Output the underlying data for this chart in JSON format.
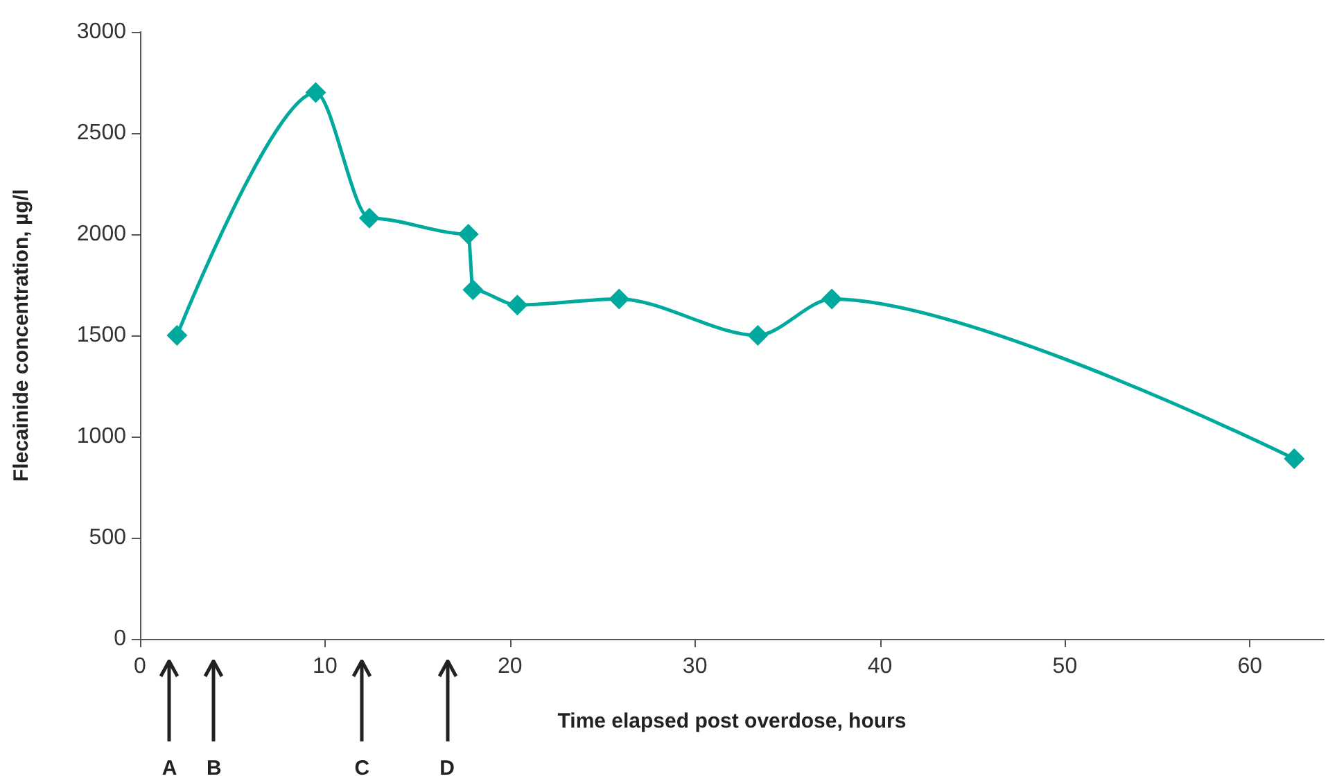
{
  "chart_data": {
    "type": "line",
    "xlabel": "Time elapsed post overdose, hours",
    "ylabel": "Flecainide concentration, µg/l",
    "x": [
      2,
      9.5,
      12.4,
      17.75,
      18,
      20.4,
      25.9,
      33.4,
      37.4,
      62.4
    ],
    "series": [
      {
        "color": "#00a99d",
        "values": [
          1500,
          2700,
          2080,
          2000,
          1725,
          1650,
          1680,
          1500,
          1680,
          890
        ]
      }
    ],
    "xlim": [
      0,
      64
    ],
    "xticks": [
      0,
      10,
      20,
      30,
      40,
      50,
      60
    ],
    "ylim": [
      0,
      3000
    ],
    "yticks": [
      0,
      500,
      1000,
      1500,
      2000,
      2500,
      3000
    ],
    "grid": false,
    "marker": "diamond",
    "line_style": "solid",
    "ref_lines": [
      {
        "axis": "x",
        "value": 1.6,
        "label": "A"
      },
      {
        "axis": "x",
        "value": 4,
        "label": "B"
      },
      {
        "axis": "x",
        "value": 12,
        "label": "C"
      },
      {
        "axis": "x",
        "value": 16.6,
        "label": "D"
      }
    ]
  }
}
